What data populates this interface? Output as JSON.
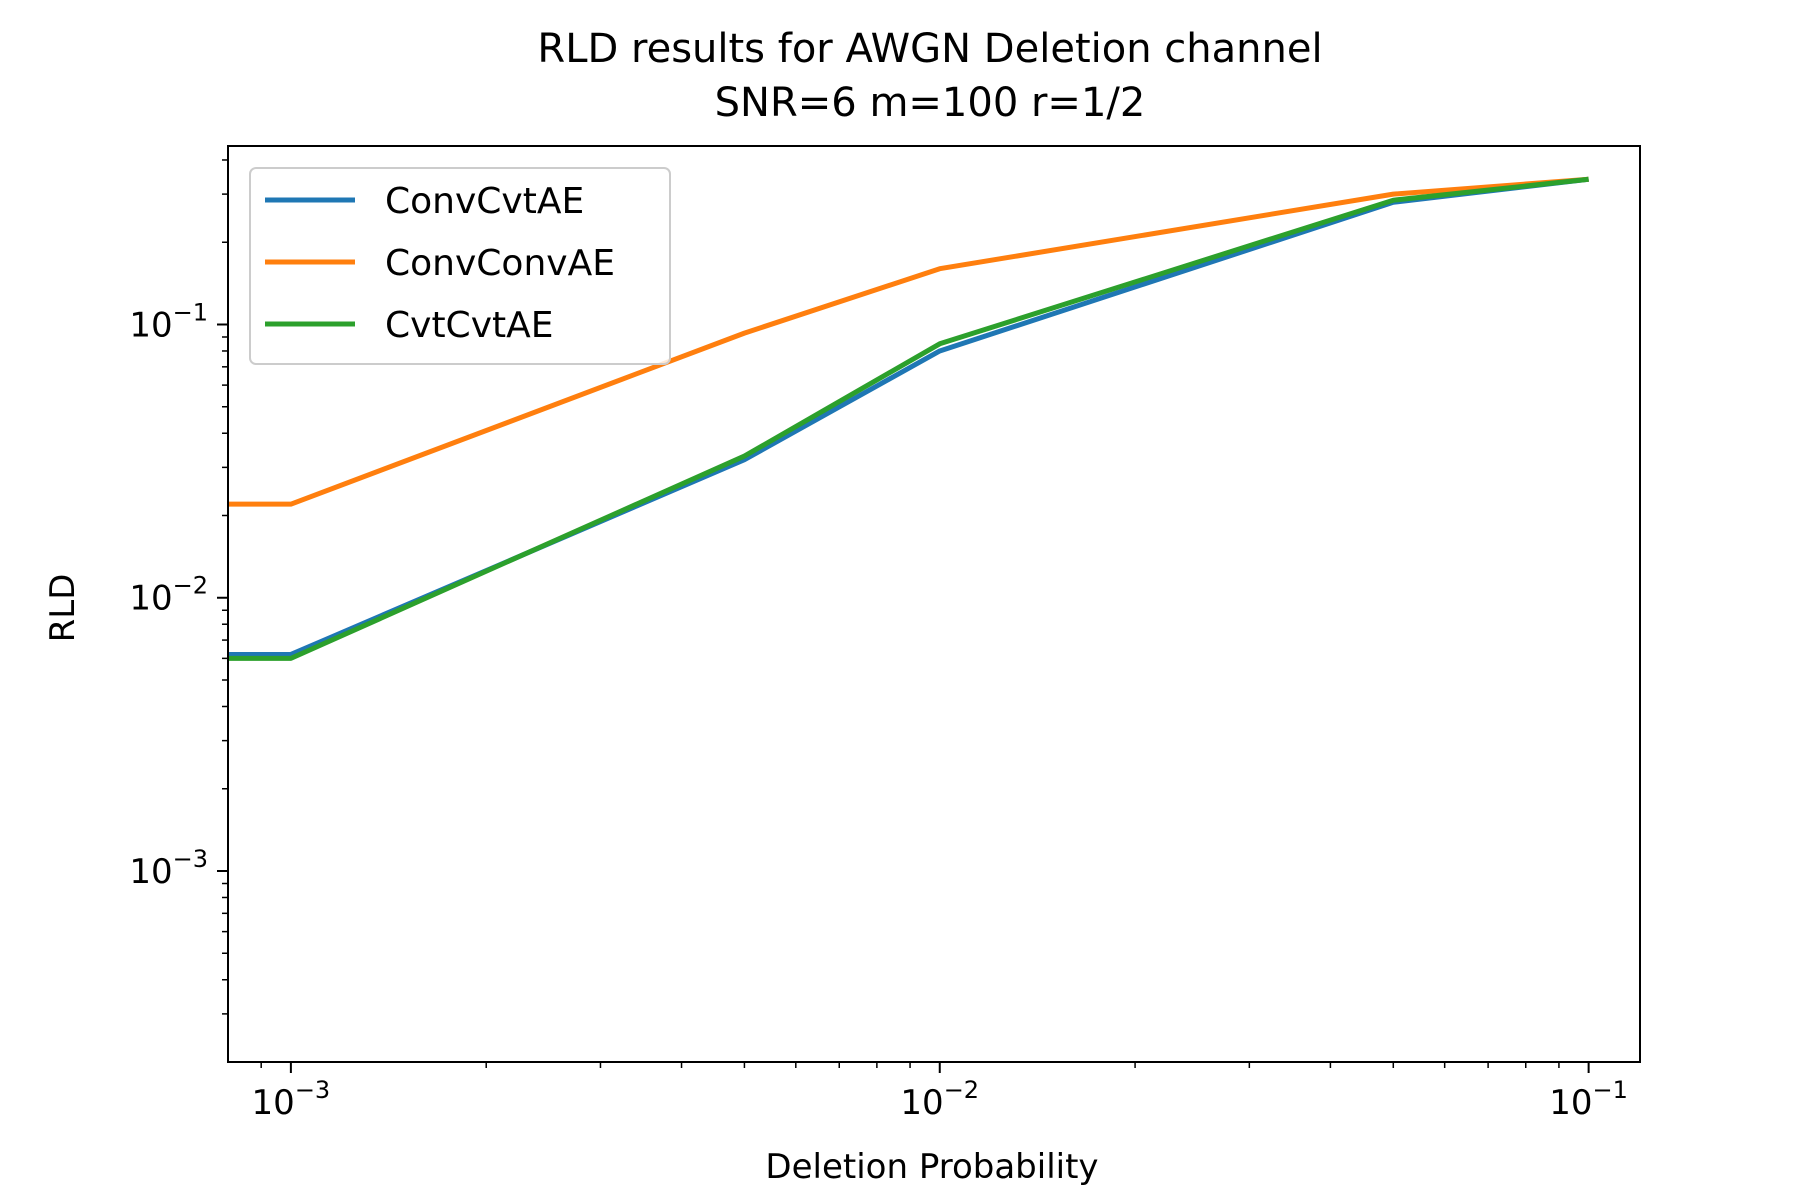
{
  "chart_data": {
    "type": "line",
    "title": "RLD results for AWGN Deletion channel",
    "subtitle": "SNR=6 m=100 r=1/2",
    "xlabel": "Deletion Probability",
    "ylabel": "RLD",
    "xscale": "log",
    "yscale": "log",
    "xlim": [
      0.0008,
      0.12
    ],
    "ylim": [
      0.0002,
      0.45
    ],
    "grid": false,
    "legend_position": "upper-left",
    "x": [
      0.0008,
      0.001,
      0.005,
      0.01,
      0.05,
      0.1
    ],
    "series": [
      {
        "name": "ConvCvtAE",
        "color": "#1f77b4",
        "values": [
          0.0062,
          0.0062,
          0.032,
          0.08,
          0.28,
          0.34
        ]
      },
      {
        "name": "ConvConvAE",
        "color": "#ff7f0e",
        "values": [
          0.022,
          0.022,
          0.093,
          0.16,
          0.3,
          0.34
        ]
      },
      {
        "name": "CvtCvtAE",
        "color": "#2ca02c",
        "values": [
          0.006,
          0.006,
          0.033,
          0.085,
          0.285,
          0.34
        ]
      }
    ],
    "x_ticks": [
      {
        "value": 0.001,
        "label_base": "10",
        "label_exp": "−3"
      },
      {
        "value": 0.01,
        "label_base": "10",
        "label_exp": "−2"
      },
      {
        "value": 0.1,
        "label_base": "10",
        "label_exp": "−1"
      }
    ],
    "y_ticks": [
      {
        "value": 0.001,
        "label_base": "10",
        "label_exp": "−3"
      },
      {
        "value": 0.01,
        "label_base": "10",
        "label_exp": "−2"
      },
      {
        "value": 0.1,
        "label_base": "10",
        "label_exp": "−1"
      }
    ]
  }
}
